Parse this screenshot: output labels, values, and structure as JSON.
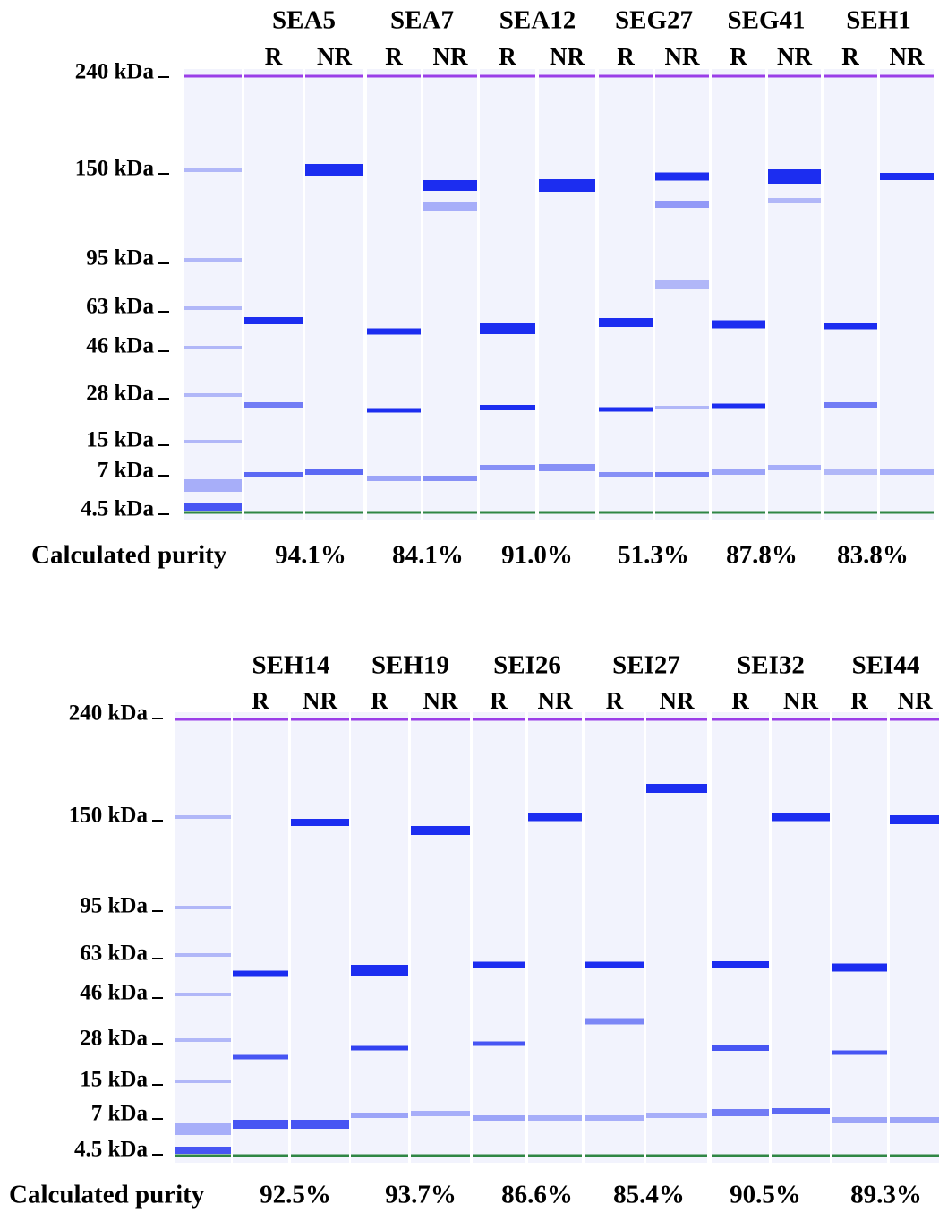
{
  "panels": [
    {
      "ladder": [
        "240 kDa",
        "150 kDa",
        "95 kDa",
        "63 kDa",
        "46 kDa",
        "28 kDa",
        "15 kDa",
        "7 kDa",
        "4.5 kDa"
      ],
      "purity_label": "Calculated purity",
      "samples": [
        {
          "name": "SEA5",
          "lanes": [
            "R",
            "NR"
          ],
          "purity": "94.1%"
        },
        {
          "name": "SEA7",
          "lanes": [
            "R",
            "NR"
          ],
          "purity": "84.1%"
        },
        {
          "name": "SEA12",
          "lanes": [
            "R",
            "NR"
          ],
          "purity": "91.0%"
        },
        {
          "name": "SEG27",
          "lanes": [
            "R",
            "NR"
          ],
          "purity": "51.3%"
        },
        {
          "name": "SEG41",
          "lanes": [
            "R",
            "NR"
          ],
          "purity": "87.8%"
        },
        {
          "name": "SEH1",
          "lanes": [
            "R",
            "NR"
          ],
          "purity": "83.8%"
        }
      ]
    },
    {
      "ladder": [
        "240 kDa",
        "150 kDa",
        "95 kDa",
        "63 kDa",
        "46 kDa",
        "28 kDa",
        "15 kDa",
        "7 kDa",
        "4.5 kDa"
      ],
      "purity_label": "Calculated purity",
      "samples": [
        {
          "name": "SEH14",
          "lanes": [
            "R",
            "NR"
          ],
          "purity": "92.5%"
        },
        {
          "name": "SEH19",
          "lanes": [
            "R",
            "NR"
          ],
          "purity": "93.7%"
        },
        {
          "name": "SEI26",
          "lanes": [
            "R",
            "NR"
          ],
          "purity": "86.6%"
        },
        {
          "name": "SEI27",
          "lanes": [
            "R",
            "NR"
          ],
          "purity": "85.4%"
        },
        {
          "name": "SEI32",
          "lanes": [
            "R",
            "NR"
          ],
          "purity": "90.5%"
        },
        {
          "name": "SEI44",
          "lanes": [
            "R",
            "NR"
          ],
          "purity": "89.3%"
        }
      ]
    }
  ]
}
